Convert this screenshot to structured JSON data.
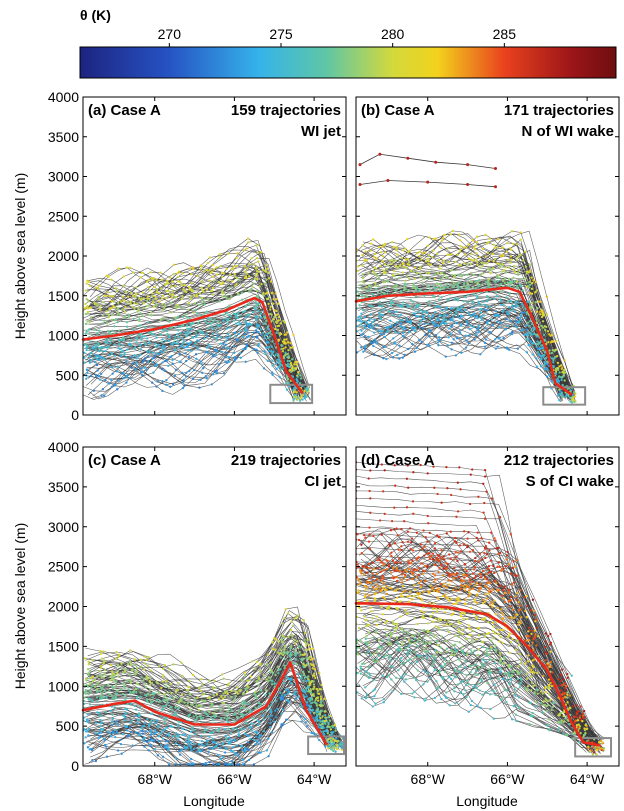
{
  "colorbar": {
    "label": "θ (K)",
    "min": 266,
    "max": 290,
    "ticks": [
      270,
      275,
      280,
      285
    ],
    "tick_labels": [
      "270",
      "275",
      "280",
      "285"
    ],
    "stops": [
      {
        "v": 266,
        "c": "#1d2480"
      },
      {
        "v": 270,
        "c": "#2653c4"
      },
      {
        "v": 274,
        "c": "#35b3ea"
      },
      {
        "v": 277,
        "c": "#5ec6a6"
      },
      {
        "v": 280,
        "c": "#d3d93c"
      },
      {
        "v": 282,
        "c": "#f2d21d"
      },
      {
        "v": 285,
        "c": "#e9421e"
      },
      {
        "v": 288,
        "c": "#9c1518"
      },
      {
        "v": 290,
        "c": "#6e0e10"
      }
    ]
  },
  "shared": {
    "ylabel": "Height above sea level (m)",
    "xlabel": "Longitude",
    "ylim": [
      0,
      4000
    ],
    "yticks": [
      0,
      500,
      1000,
      1500,
      2000,
      2500,
      3000,
      3500,
      4000
    ],
    "xlim": [
      -69.8,
      -63.2
    ],
    "xticks": [
      -68,
      -66,
      -64
    ],
    "xtick_labels": [
      "68°W",
      "66°W",
      "64°W"
    ],
    "mean_color": "#e8291c",
    "box_color": "#8c8c8c"
  },
  "chart_data": [
    {
      "type": "line",
      "panel_label": "(a) Case A",
      "count_label": "159 trajectories",
      "region_label": "WI jet",
      "n_lines": 100,
      "mean_trajectory": {
        "x": [
          -69.8,
          -69.0,
          -68.0,
          -67.0,
          -66.2,
          -65.5,
          -65.3,
          -65.0,
          -64.7,
          -64.3
        ],
        "y": [
          950,
          1000,
          1080,
          1200,
          1320,
          1470,
          1420,
          1000,
          550,
          280
        ]
      },
      "end_box": {
        "x": [
          -65.1,
          -64.05
        ],
        "y": [
          150,
          380
        ]
      },
      "profile": {
        "x": [
          -69.8,
          -68.5,
          -67.5,
          -66.2,
          -65.5,
          -65.3
        ],
        "y": [
          1000,
          1080,
          1150,
          1300,
          1480,
          1400
        ]
      },
      "descent": {
        "x0": -65.3,
        "x1": -64.3,
        "y1": 280
      },
      "spread": [
        850,
        800
      ],
      "theta": [
        272,
        281.5
      ]
    },
    {
      "type": "line",
      "panel_label": "(b) Case A",
      "count_label": "171 trajectories",
      "region_label": "N of WI wake",
      "n_lines": 100,
      "mean_trajectory": {
        "x": [
          -69.8,
          -69.0,
          -68.0,
          -67.0,
          -66.0,
          -65.7,
          -65.4,
          -65.0,
          -64.8,
          -64.4
        ],
        "y": [
          1430,
          1500,
          1530,
          1550,
          1600,
          1550,
          1250,
          800,
          400,
          260
        ]
      },
      "end_box": {
        "x": [
          -65.1,
          -64.05
        ],
        "y": [
          130,
          350
        ]
      },
      "profile": {
        "x": [
          -69.8,
          -68.5,
          -67.0,
          -66.0,
          -65.6
        ],
        "y": [
          1450,
          1520,
          1560,
          1600,
          1550
        ]
      },
      "descent": {
        "x0": -65.6,
        "x1": -64.5,
        "y1": 250
      },
      "spread": [
        850,
        750
      ],
      "theta": [
        272,
        281.5
      ],
      "extra_traces": [
        {
          "x": [
            -69.7,
            -69.2,
            -68.5,
            -67.8,
            -67.0,
            -66.3
          ],
          "y": [
            3150,
            3280,
            3230,
            3180,
            3150,
            3100
          ]
        },
        {
          "x": [
            -69.7,
            -69.0,
            -68.0,
            -67.0,
            -66.3
          ],
          "y": [
            2900,
            2950,
            2930,
            2900,
            2870
          ]
        }
      ]
    },
    {
      "type": "line",
      "panel_label": "(c) Case A",
      "count_label": "219 trajectories",
      "region_label": "CI jet",
      "n_lines": 110,
      "mean_trajectory": {
        "x": [
          -69.8,
          -69.0,
          -68.5,
          -68.0,
          -67.0,
          -66.0,
          -65.2,
          -64.8,
          -64.6,
          -64.2,
          -63.7
        ],
        "y": [
          700,
          780,
          820,
          680,
          520,
          520,
          750,
          1100,
          1300,
          700,
          280
        ]
      },
      "end_box": {
        "x": [
          -64.15,
          -63.25
        ],
        "y": [
          150,
          370
        ]
      },
      "profile": {
        "x": [
          -69.8,
          -68.6,
          -67.8,
          -67.0,
          -66.0,
          -65.2,
          -64.6,
          -64.3
        ],
        "y": [
          800,
          850,
          700,
          550,
          550,
          800,
          1350,
          1200
        ]
      },
      "descent": {
        "x0": -64.3,
        "x1": -63.5,
        "y1": 280
      },
      "spread": [
        800,
        700
      ],
      "theta": [
        272,
        280.5
      ]
    },
    {
      "type": "line",
      "panel_label": "(d) Case A",
      "count_label": "212 trajectories",
      "region_label": "S of CI wake",
      "n_lines": 110,
      "mean_trajectory": {
        "x": [
          -69.8,
          -68.5,
          -67.5,
          -66.5,
          -66.0,
          -65.5,
          -65.0,
          -64.7,
          -64.4,
          -64.1,
          -63.7
        ],
        "y": [
          2040,
          2030,
          1990,
          1900,
          1750,
          1500,
          1200,
          900,
          550,
          300,
          260
        ]
      },
      "end_box": {
        "x": [
          -64.3,
          -63.4
        ],
        "y": [
          120,
          350
        ]
      },
      "profile": {
        "x": [
          -69.8,
          -68.5,
          -67.5,
          -66.5,
          -65.8
        ],
        "y": [
          2050,
          2030,
          1990,
          1900,
          1650
        ]
      },
      "descent": {
        "x0": -65.8,
        "x1": -63.8,
        "y1": 250
      },
      "spread": [
        1300,
        1000
      ],
      "theta": [
        275,
        286.5
      ],
      "high_fan": {
        "y": [
          2300,
          3800
        ],
        "x_break": [
          -66.8,
          -66.2
        ],
        "n": 18
      }
    }
  ]
}
